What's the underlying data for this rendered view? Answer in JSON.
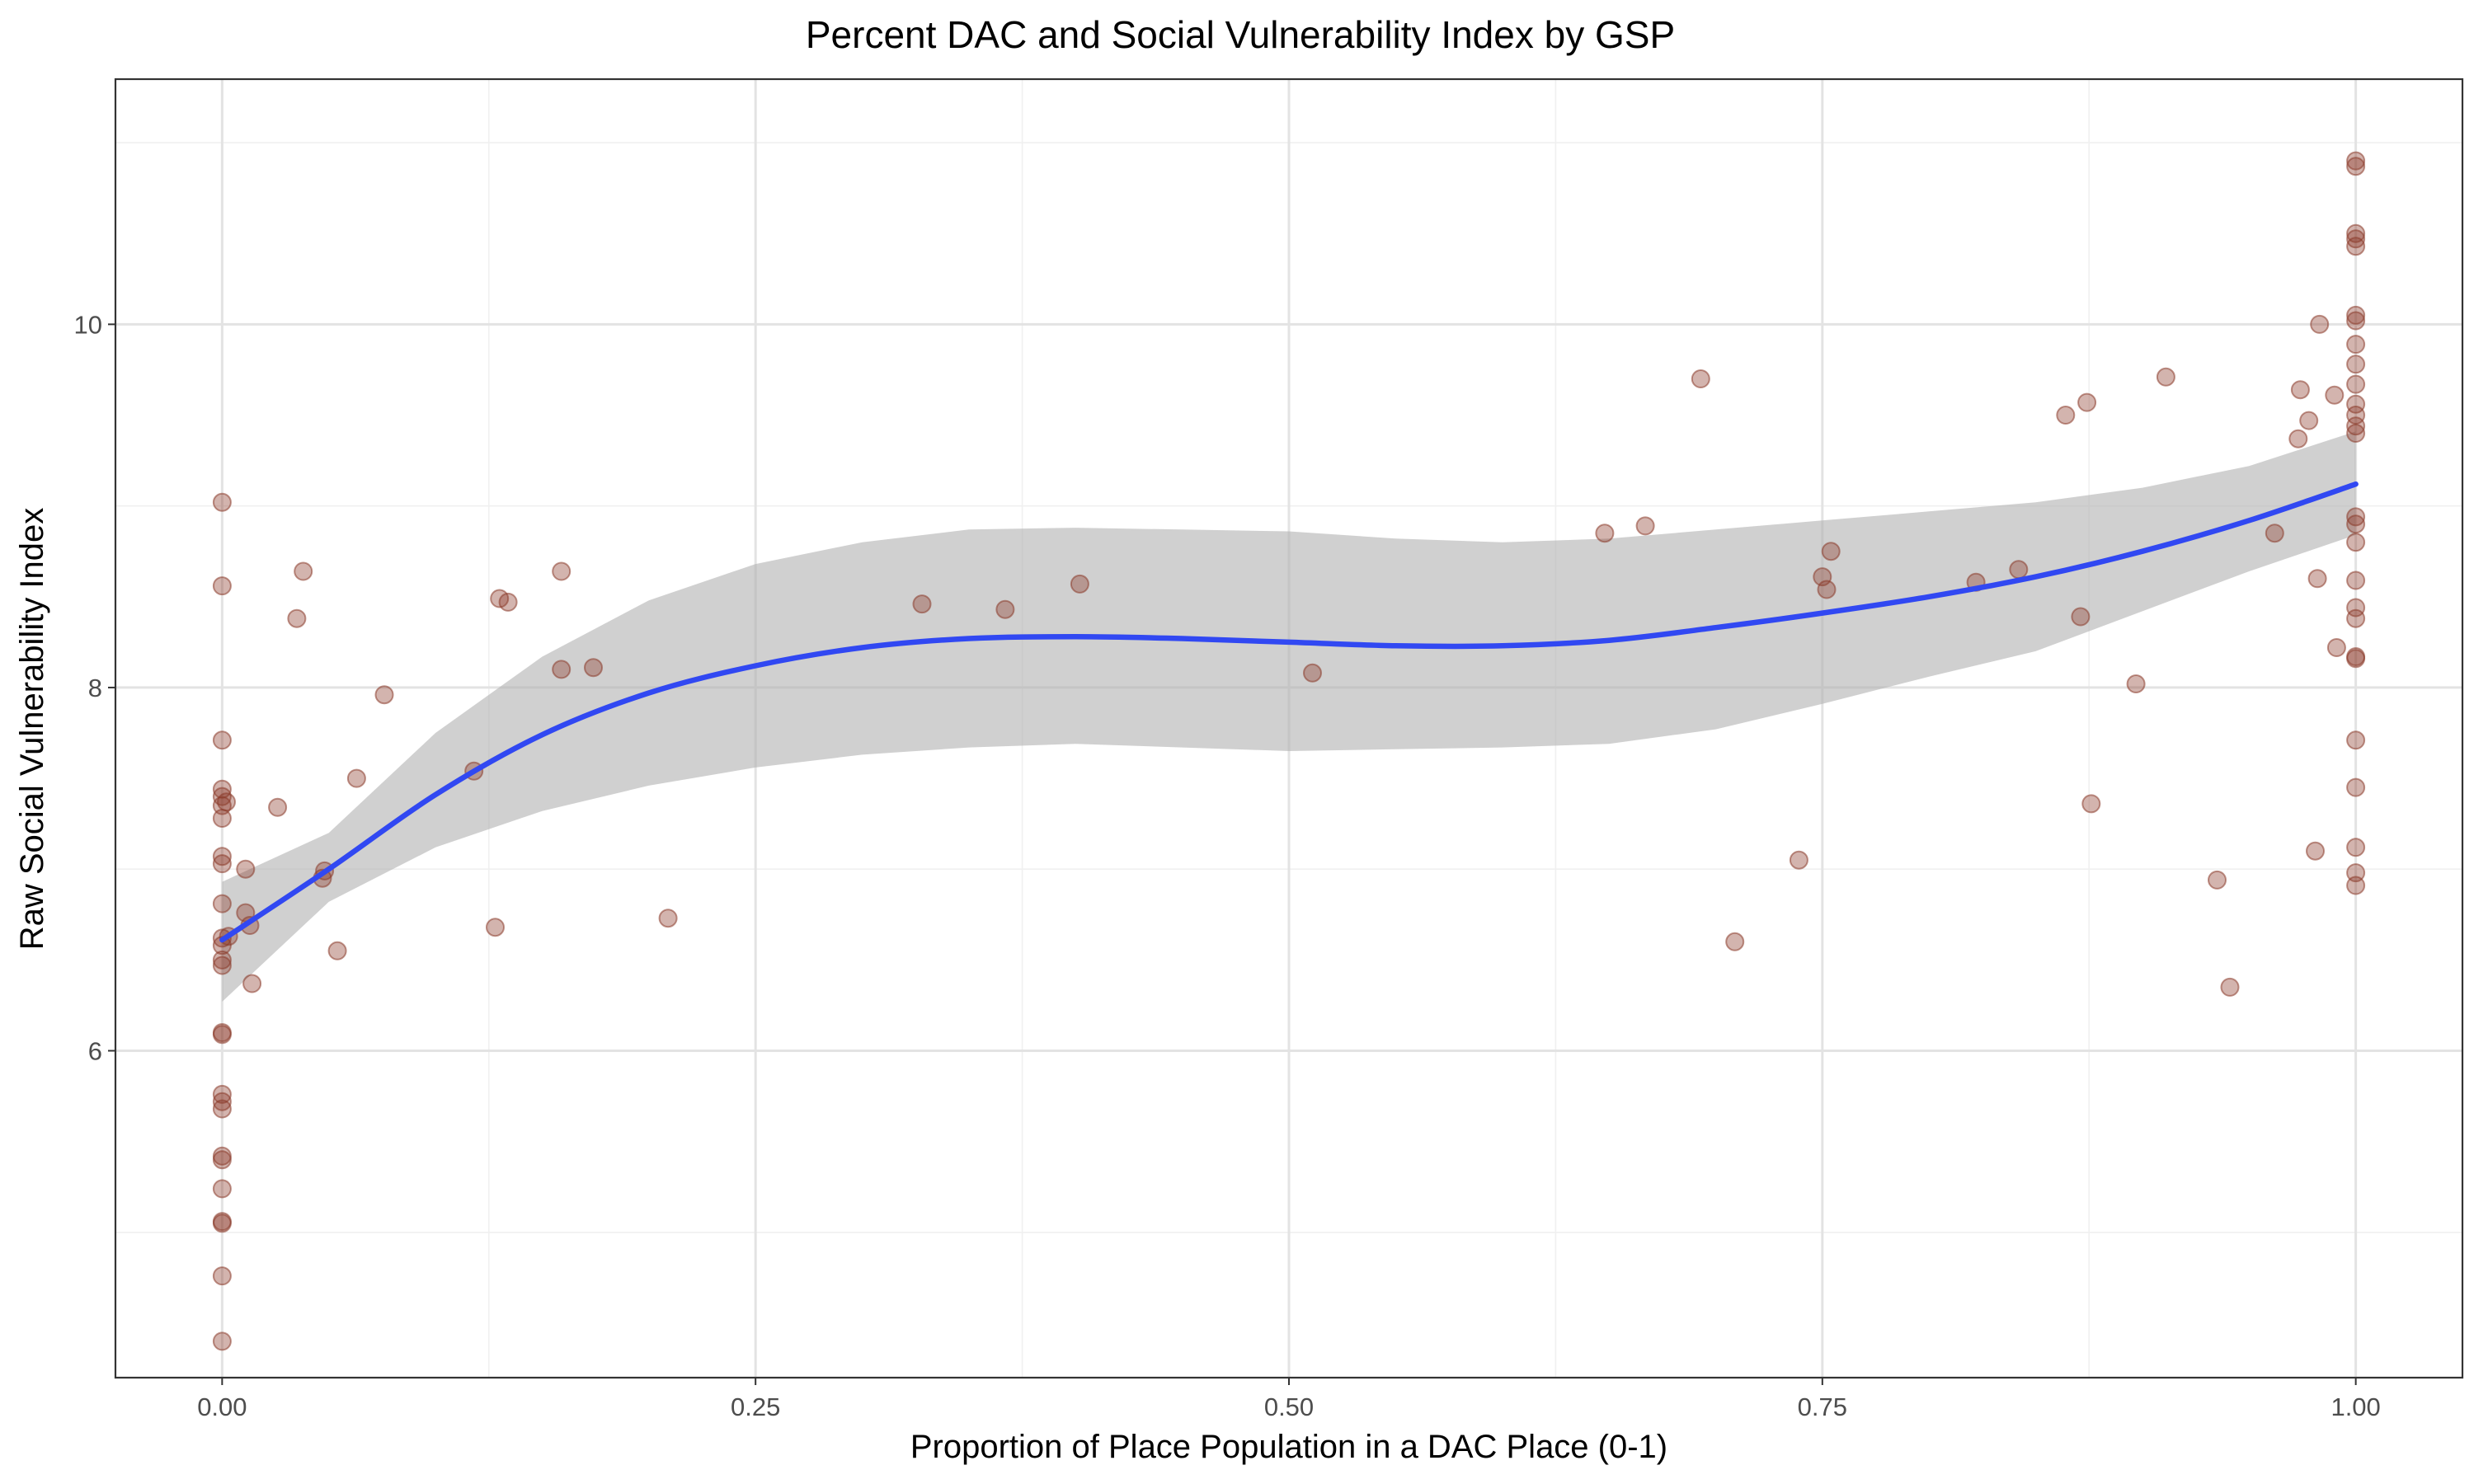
{
  "chart_data": {
    "type": "scatter",
    "title": "Percent DAC and Social Vulnerability Index by GSP",
    "xlabel": "Proportion of Place Population in a DAC Place (0-1)",
    "ylabel": "Raw Social Vulnerability Index",
    "xlim": [
      -0.05,
      1.05
    ],
    "ylim": [
      4.2,
      11.35
    ],
    "x_ticks": [
      0.0,
      0.25,
      0.5,
      0.75,
      1.0
    ],
    "x_tick_labels": [
      "0.00",
      "0.25",
      "0.50",
      "0.75",
      "1.00"
    ],
    "y_ticks": [
      6,
      8,
      10
    ],
    "y_tick_labels": [
      "6",
      "8",
      "10"
    ],
    "grid": true,
    "legend": "none",
    "colors": {
      "points": "#8b3a2a",
      "smooth_line": "#3148f2",
      "confidence_band": "#b3b3b3",
      "grid": "#e3e3e3",
      "border": "#333333"
    },
    "points": [
      {
        "x": 0.0,
        "y": 9.02
      },
      {
        "x": 0.0,
        "y": 8.56
      },
      {
        "x": 0.0,
        "y": 7.71
      },
      {
        "x": 0.0,
        "y": 7.44
      },
      {
        "x": 0.0,
        "y": 7.4
      },
      {
        "x": 0.0,
        "y": 7.35
      },
      {
        "x": 0.0,
        "y": 7.28
      },
      {
        "x": 0.0,
        "y": 7.07
      },
      {
        "x": 0.0,
        "y": 7.03
      },
      {
        "x": 0.0,
        "y": 6.81
      },
      {
        "x": 0.0,
        "y": 6.62
      },
      {
        "x": 0.0,
        "y": 6.58
      },
      {
        "x": 0.0,
        "y": 6.5
      },
      {
        "x": 0.0,
        "y": 6.47
      },
      {
        "x": 0.0,
        "y": 6.1
      },
      {
        "x": 0.0,
        "y": 6.09
      },
      {
        "x": 0.0,
        "y": 5.76
      },
      {
        "x": 0.0,
        "y": 5.72
      },
      {
        "x": 0.0,
        "y": 5.68
      },
      {
        "x": 0.0,
        "y": 5.42
      },
      {
        "x": 0.0,
        "y": 5.4
      },
      {
        "x": 0.0,
        "y": 5.24
      },
      {
        "x": 0.0,
        "y": 5.06
      },
      {
        "x": 0.0,
        "y": 5.05
      },
      {
        "x": 0.0,
        "y": 4.76
      },
      {
        "x": 0.0,
        "y": 4.4
      },
      {
        "x": 0.002,
        "y": 7.37
      },
      {
        "x": 0.003,
        "y": 6.63
      },
      {
        "x": 0.011,
        "y": 7.0
      },
      {
        "x": 0.011,
        "y": 6.76
      },
      {
        "x": 0.013,
        "y": 6.69
      },
      {
        "x": 0.014,
        "y": 6.37
      },
      {
        "x": 0.026,
        "y": 7.34
      },
      {
        "x": 0.035,
        "y": 8.38
      },
      {
        "x": 0.038,
        "y": 8.64
      },
      {
        "x": 0.047,
        "y": 6.95
      },
      {
        "x": 0.048,
        "y": 6.99
      },
      {
        "x": 0.054,
        "y": 6.55
      },
      {
        "x": 0.063,
        "y": 7.5
      },
      {
        "x": 0.076,
        "y": 7.96
      },
      {
        "x": 0.118,
        "y": 7.54
      },
      {
        "x": 0.128,
        "y": 6.68
      },
      {
        "x": 0.13,
        "y": 8.49
      },
      {
        "x": 0.134,
        "y": 8.47
      },
      {
        "x": 0.159,
        "y": 8.64
      },
      {
        "x": 0.159,
        "y": 8.1
      },
      {
        "x": 0.174,
        "y": 8.11
      },
      {
        "x": 0.209,
        "y": 6.73
      },
      {
        "x": 0.328,
        "y": 8.46
      },
      {
        "x": 0.367,
        "y": 8.43
      },
      {
        "x": 0.402,
        "y": 8.57
      },
      {
        "x": 0.511,
        "y": 8.08
      },
      {
        "x": 0.648,
        "y": 8.85
      },
      {
        "x": 0.667,
        "y": 8.89
      },
      {
        "x": 0.693,
        "y": 9.7
      },
      {
        "x": 0.709,
        "y": 6.6
      },
      {
        "x": 0.739,
        "y": 7.05
      },
      {
        "x": 0.75,
        "y": 8.61
      },
      {
        "x": 0.752,
        "y": 8.54
      },
      {
        "x": 0.754,
        "y": 8.75
      },
      {
        "x": 0.822,
        "y": 8.58
      },
      {
        "x": 0.842,
        "y": 8.65
      },
      {
        "x": 0.864,
        "y": 9.5
      },
      {
        "x": 0.871,
        "y": 8.39
      },
      {
        "x": 0.874,
        "y": 9.57
      },
      {
        "x": 0.876,
        "y": 7.36
      },
      {
        "x": 0.897,
        "y": 8.02
      },
      {
        "x": 0.911,
        "y": 9.71
      },
      {
        "x": 0.935,
        "y": 6.94
      },
      {
        "x": 0.941,
        "y": 6.35
      },
      {
        "x": 0.962,
        "y": 8.85
      },
      {
        "x": 0.973,
        "y": 9.37
      },
      {
        "x": 0.974,
        "y": 9.64
      },
      {
        "x": 0.978,
        "y": 9.47
      },
      {
        "x": 0.981,
        "y": 7.1
      },
      {
        "x": 0.982,
        "y": 8.6
      },
      {
        "x": 0.983,
        "y": 10.0
      },
      {
        "x": 0.99,
        "y": 9.61
      },
      {
        "x": 0.991,
        "y": 8.22
      },
      {
        "x": 1.0,
        "y": 10.9
      },
      {
        "x": 1.0,
        "y": 10.87
      },
      {
        "x": 1.0,
        "y": 10.5
      },
      {
        "x": 1.0,
        "y": 10.47
      },
      {
        "x": 1.0,
        "y": 10.43
      },
      {
        "x": 1.0,
        "y": 10.05
      },
      {
        "x": 1.0,
        "y": 10.02
      },
      {
        "x": 1.0,
        "y": 9.89
      },
      {
        "x": 1.0,
        "y": 9.78
      },
      {
        "x": 1.0,
        "y": 9.67
      },
      {
        "x": 1.0,
        "y": 9.56
      },
      {
        "x": 1.0,
        "y": 9.5
      },
      {
        "x": 1.0,
        "y": 9.44
      },
      {
        "x": 1.0,
        "y": 9.4
      },
      {
        "x": 1.0,
        "y": 8.94
      },
      {
        "x": 1.0,
        "y": 8.9
      },
      {
        "x": 1.0,
        "y": 8.8
      },
      {
        "x": 1.0,
        "y": 8.59
      },
      {
        "x": 1.0,
        "y": 8.44
      },
      {
        "x": 1.0,
        "y": 8.38
      },
      {
        "x": 1.0,
        "y": 8.17
      },
      {
        "x": 1.0,
        "y": 8.16
      },
      {
        "x": 1.0,
        "y": 7.71
      },
      {
        "x": 1.0,
        "y": 7.45
      },
      {
        "x": 1.0,
        "y": 7.12
      },
      {
        "x": 1.0,
        "y": 6.98
      },
      {
        "x": 1.0,
        "y": 6.91
      }
    ],
    "smooth": {
      "x": [
        0.0,
        0.05,
        0.1,
        0.15,
        0.2,
        0.25,
        0.3,
        0.35,
        0.4,
        0.45,
        0.5,
        0.55,
        0.6,
        0.65,
        0.7,
        0.75,
        0.8,
        0.85,
        0.9,
        0.95,
        1.0
      ],
      "y": [
        6.61,
        7.0,
        7.41,
        7.74,
        7.97,
        8.12,
        8.22,
        8.27,
        8.28,
        8.27,
        8.25,
        8.23,
        8.23,
        8.26,
        8.33,
        8.41,
        8.5,
        8.61,
        8.75,
        8.92,
        9.12
      ],
      "lower": [
        6.27,
        6.82,
        7.12,
        7.32,
        7.46,
        7.56,
        7.63,
        7.67,
        7.69,
        7.67,
        7.65,
        7.66,
        7.67,
        7.69,
        7.77,
        7.91,
        8.06,
        8.2,
        8.42,
        8.64,
        8.84
      ],
      "upper": [
        6.93,
        7.2,
        7.75,
        8.17,
        8.48,
        8.68,
        8.8,
        8.87,
        8.88,
        8.87,
        8.86,
        8.82,
        8.8,
        8.82,
        8.87,
        8.92,
        8.97,
        9.02,
        9.1,
        9.22,
        9.41
      ]
    }
  }
}
